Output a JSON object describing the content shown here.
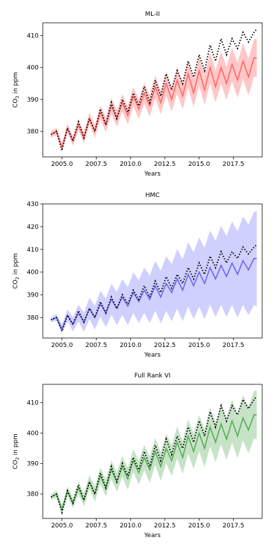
{
  "chart_data": [
    {
      "type": "line",
      "title": "ML-II",
      "xlabel": "Years",
      "ylabel": "CO2 in ppm",
      "xlim": [
        2003.6,
        2019.6
      ],
      "ylim": [
        372,
        414
      ],
      "xticks": [
        "2005.0",
        "2007.5",
        "2010.0",
        "2012.5",
        "2015.0",
        "2017.5"
      ],
      "yticks": [
        "380",
        "390",
        "400",
        "410"
      ],
      "series": [
        {
          "role": "observed",
          "style": "dotted",
          "color": "#000000",
          "x": [
            2004.2,
            2004.6,
            2005.0,
            2005.4,
            2005.8,
            2006.2,
            2006.6,
            2007.0,
            2007.4,
            2007.8,
            2008.2,
            2008.6,
            2009.0,
            2009.4,
            2009.8,
            2010.2,
            2010.6,
            2011.0,
            2011.4,
            2011.8,
            2012.2,
            2012.6,
            2013.0,
            2013.4,
            2013.8,
            2014.2,
            2014.6,
            2015.0,
            2015.4,
            2015.8,
            2016.2,
            2016.6,
            2017.0,
            2017.4,
            2017.8,
            2018.2,
            2018.6,
            2019.0,
            2019.2
          ],
          "y": [
            379,
            380,
            374,
            381,
            377,
            383,
            378,
            384,
            380,
            387,
            382,
            389,
            384,
            390,
            386,
            392,
            388,
            394,
            389,
            396,
            391,
            398,
            393,
            399,
            395,
            402,
            397,
            404,
            399,
            407,
            402,
            409,
            404,
            409,
            406,
            411,
            408,
            411,
            412
          ]
        },
        {
          "role": "predicted_mean",
          "color": "#ff6666",
          "x": [
            2004.2,
            2004.6,
            2005.0,
            2005.4,
            2005.8,
            2006.2,
            2006.6,
            2007.0,
            2007.4,
            2007.8,
            2008.2,
            2008.6,
            2009.0,
            2009.4,
            2009.8,
            2010.2,
            2010.6,
            2011.0,
            2011.4,
            2011.8,
            2012.2,
            2012.6,
            2013.0,
            2013.4,
            2013.8,
            2014.2,
            2014.6,
            2015.0,
            2015.4,
            2015.8,
            2016.2,
            2016.6,
            2017.0,
            2017.4,
            2017.8,
            2018.2,
            2018.6,
            2019.0,
            2019.2
          ],
          "y": [
            379,
            380,
            375,
            381,
            377,
            382,
            378,
            384,
            380,
            386,
            382,
            388,
            384,
            389,
            385,
            391,
            387,
            392,
            388,
            394,
            389,
            395,
            390,
            396,
            391,
            398,
            392,
            399,
            393,
            400,
            394,
            400,
            395,
            401,
            396,
            402,
            397,
            403,
            403
          ]
        },
        {
          "role": "interval",
          "color": "#ff9999",
          "spread": [
            1.0,
            6.0
          ]
        }
      ]
    },
    {
      "type": "line",
      "title": "HMC",
      "xlabel": "Years",
      "ylabel": "CO2 in ppm",
      "xlim": [
        2003.6,
        2019.6
      ],
      "ylim": [
        371,
        430
      ],
      "xticks": [
        "2005.0",
        "2007.5",
        "2010.0",
        "2012.5",
        "2015.0",
        "2017.5"
      ],
      "yticks": [
        "380",
        "390",
        "400",
        "410",
        "420",
        "430"
      ],
      "series": [
        {
          "role": "observed",
          "style": "dotted",
          "color": "#000000",
          "x": [
            2004.2,
            2004.6,
            2005.0,
            2005.4,
            2005.8,
            2006.2,
            2006.6,
            2007.0,
            2007.4,
            2007.8,
            2008.2,
            2008.6,
            2009.0,
            2009.4,
            2009.8,
            2010.2,
            2010.6,
            2011.0,
            2011.4,
            2011.8,
            2012.2,
            2012.6,
            2013.0,
            2013.4,
            2013.8,
            2014.2,
            2014.6,
            2015.0,
            2015.4,
            2015.8,
            2016.2,
            2016.6,
            2017.0,
            2017.4,
            2017.8,
            2018.2,
            2018.6,
            2019.0,
            2019.2
          ],
          "y": [
            379,
            380,
            374,
            381,
            377,
            383,
            378,
            384,
            380,
            387,
            382,
            389,
            384,
            390,
            386,
            392,
            388,
            394,
            389,
            396,
            391,
            398,
            393,
            399,
            395,
            402,
            397,
            404,
            399,
            407,
            402,
            409,
            404,
            409,
            406,
            411,
            408,
            411,
            412
          ]
        },
        {
          "role": "predicted_mean",
          "color": "#6666ee",
          "x": [
            2004.2,
            2004.6,
            2005.0,
            2005.4,
            2005.8,
            2006.2,
            2006.6,
            2007.0,
            2007.4,
            2007.8,
            2008.2,
            2008.6,
            2009.0,
            2009.4,
            2009.8,
            2010.2,
            2010.6,
            2011.0,
            2011.4,
            2011.8,
            2012.2,
            2012.6,
            2013.0,
            2013.4,
            2013.8,
            2014.2,
            2014.6,
            2015.0,
            2015.4,
            2015.8,
            2016.2,
            2016.6,
            2017.0,
            2017.4,
            2017.8,
            2018.2,
            2018.6,
            2019.0,
            2019.2
          ],
          "y": [
            379,
            380,
            375,
            381,
            377,
            382,
            378,
            384,
            380,
            386,
            382,
            388,
            384,
            389,
            385,
            391,
            387,
            392,
            388,
            394,
            389,
            395,
            391,
            397,
            392,
            399,
            394,
            400,
            395,
            402,
            397,
            403,
            398,
            404,
            399,
            405,
            401,
            406,
            406
          ]
        },
        {
          "role": "interval",
          "color": "#aaaaff",
          "spread": [
            1.0,
            21.0
          ]
        }
      ]
    },
    {
      "type": "line",
      "title": "Full Rank VI",
      "xlabel": "Years",
      "ylabel": "CO2 in ppm",
      "xlim": [
        2003.6,
        2019.6
      ],
      "ylim": [
        372,
        416
      ],
      "xticks": [
        "2005.0",
        "2007.5",
        "2010.0",
        "2012.5",
        "2015.0",
        "2017.5"
      ],
      "yticks": [
        "380",
        "390",
        "400",
        "410"
      ],
      "series": [
        {
          "role": "observed",
          "style": "dotted",
          "color": "#000000",
          "x": [
            2004.2,
            2004.6,
            2005.0,
            2005.4,
            2005.8,
            2006.2,
            2006.6,
            2007.0,
            2007.4,
            2007.8,
            2008.2,
            2008.6,
            2009.0,
            2009.4,
            2009.8,
            2010.2,
            2010.6,
            2011.0,
            2011.4,
            2011.8,
            2012.2,
            2012.6,
            2013.0,
            2013.4,
            2013.8,
            2014.2,
            2014.6,
            2015.0,
            2015.4,
            2015.8,
            2016.2,
            2016.6,
            2017.0,
            2017.4,
            2017.8,
            2018.2,
            2018.6,
            2019.0,
            2019.2
          ],
          "y": [
            379,
            380,
            374,
            381,
            377,
            383,
            378,
            384,
            380,
            387,
            382,
            389,
            384,
            390,
            386,
            392,
            388,
            394,
            389,
            396,
            391,
            398,
            393,
            399,
            395,
            402,
            397,
            404,
            399,
            407,
            402,
            409,
            404,
            409,
            406,
            411,
            408,
            411,
            412
          ]
        },
        {
          "role": "predicted_mean",
          "color": "#55aa55",
          "x": [
            2004.2,
            2004.6,
            2005.0,
            2005.4,
            2005.8,
            2006.2,
            2006.6,
            2007.0,
            2007.4,
            2007.8,
            2008.2,
            2008.6,
            2009.0,
            2009.4,
            2009.8,
            2010.2,
            2010.6,
            2011.0,
            2011.4,
            2011.8,
            2012.2,
            2012.6,
            2013.0,
            2013.4,
            2013.8,
            2014.2,
            2014.6,
            2015.0,
            2015.4,
            2015.8,
            2016.2,
            2016.6,
            2017.0,
            2017.4,
            2017.8,
            2018.2,
            2018.6,
            2019.0,
            2019.2
          ],
          "y": [
            379,
            380,
            375,
            381,
            377,
            382,
            378,
            384,
            380,
            386,
            382,
            388,
            384,
            389,
            385,
            391,
            387,
            392,
            388,
            394,
            389,
            395,
            391,
            397,
            392,
            399,
            394,
            400,
            395,
            402,
            397,
            403,
            398,
            404,
            399,
            405,
            401,
            406,
            406
          ]
        },
        {
          "role": "interval",
          "color": "#99cc99",
          "spread": [
            1.0,
            8.0
          ]
        }
      ]
    }
  ]
}
